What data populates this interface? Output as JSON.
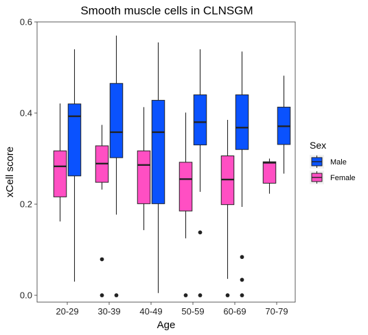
{
  "chart_data": {
    "type": "boxplot",
    "title": "Smooth muscle cells in CLNSGM",
    "xlabel": "Age",
    "ylabel": "xCell score",
    "categories": [
      "20-29",
      "30-39",
      "40-49",
      "50-59",
      "60-69",
      "70-79"
    ],
    "ylim": [
      -0.015,
      0.6
    ],
    "yticks": [
      0.0,
      0.2,
      0.4,
      0.6
    ],
    "ytick_labels": [
      "0.0",
      "0.2",
      "0.4",
      "0.6"
    ],
    "grid": false,
    "legend": {
      "title": "Sex",
      "position": "right"
    },
    "series": [
      {
        "name": "Male",
        "color": "#0a52fe",
        "boxes": [
          {
            "category": "20-29",
            "whisker_low": 0.03,
            "q1": 0.262,
            "median": 0.393,
            "q3": 0.42,
            "whisker_high": 0.54,
            "outliers": []
          },
          {
            "category": "30-39",
            "whisker_low": 0.177,
            "q1": 0.302,
            "median": 0.358,
            "q3": 0.465,
            "whisker_high": 0.57,
            "outliers": [
              0.0
            ]
          },
          {
            "category": "40-49",
            "whisker_low": 0.005,
            "q1": 0.201,
            "median": 0.358,
            "q3": 0.428,
            "whisker_high": 0.555,
            "outliers": []
          },
          {
            "category": "50-59",
            "whisker_low": 0.227,
            "q1": 0.33,
            "median": 0.38,
            "q3": 0.44,
            "whisker_high": 0.54,
            "outliers": [
              0.138,
              0.0
            ]
          },
          {
            "category": "60-69",
            "whisker_low": 0.194,
            "q1": 0.32,
            "median": 0.368,
            "q3": 0.44,
            "whisker_high": 0.535,
            "outliers": [
              0.084,
              0.034,
              0.0
            ]
          },
          {
            "category": "70-79",
            "whisker_low": 0.267,
            "q1": 0.331,
            "median": 0.371,
            "q3": 0.413,
            "whisker_high": 0.482,
            "outliers": []
          }
        ]
      },
      {
        "name": "Female",
        "color": "#ff4fc3",
        "boxes": [
          {
            "category": "20-29",
            "whisker_low": 0.162,
            "q1": 0.216,
            "median": 0.283,
            "q3": 0.317,
            "whisker_high": 0.421,
            "outliers": []
          },
          {
            "category": "30-39",
            "whisker_low": 0.232,
            "q1": 0.248,
            "median": 0.289,
            "q3": 0.328,
            "whisker_high": 0.374,
            "outliers": [
              0.079,
              0.0
            ]
          },
          {
            "category": "40-49",
            "whisker_low": 0.143,
            "q1": 0.201,
            "median": 0.286,
            "q3": 0.317,
            "whisker_high": 0.413,
            "outliers": []
          },
          {
            "category": "50-59",
            "whisker_low": 0.125,
            "q1": 0.185,
            "median": 0.255,
            "q3": 0.292,
            "whisker_high": 0.401,
            "outliers": [
              0.0
            ]
          },
          {
            "category": "60-69",
            "whisker_low": 0.036,
            "q1": 0.199,
            "median": 0.254,
            "q3": 0.306,
            "whisker_high": 0.385,
            "outliers": [
              0.0
            ]
          },
          {
            "category": "70-79",
            "whisker_low": 0.223,
            "q1": 0.246,
            "median": 0.291,
            "q3": 0.293,
            "whisker_high": 0.3,
            "outliers": []
          }
        ]
      }
    ]
  }
}
